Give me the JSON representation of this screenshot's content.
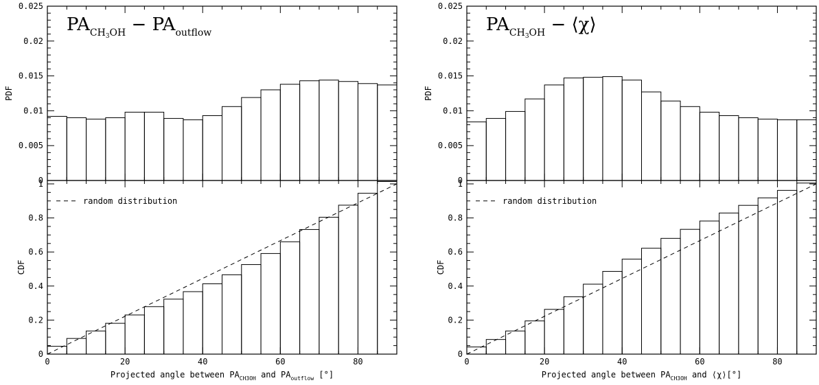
{
  "chart_data": [
    {
      "type": "bar",
      "panel": "left",
      "title": {
        "main": "PA",
        "sub1": "CH",
        "sub1b": "3",
        "sub1c": "OH",
        "op": "−",
        "rhs": "PA",
        "rhs_sub": "outflow"
      },
      "xlabel": {
        "pre": "Projected angle between PA",
        "sub1": "CH",
        "sub1b": "3",
        "sub1c": "OH",
        "mid": " and PA",
        "sub2": "outflow",
        "post": " [°]"
      },
      "pdf": {
        "ylabel": "PDF",
        "ylim": [
          0,
          0.025
        ],
        "yticks": [
          "0",
          "0.005",
          "0.01",
          "0.015",
          "0.02",
          "0.025"
        ],
        "bin_edges": [
          0,
          5,
          10,
          15,
          20,
          25,
          30,
          35,
          40,
          45,
          50,
          55,
          60,
          65,
          70,
          75,
          80,
          85,
          90
        ],
        "values": [
          0.0092,
          0.009,
          0.0088,
          0.009,
          0.0098,
          0.0098,
          0.0089,
          0.0087,
          0.0093,
          0.0106,
          0.0119,
          0.013,
          0.0138,
          0.0143,
          0.0144,
          0.0142,
          0.0139,
          0.0137
        ]
      },
      "cdf": {
        "ylabel": "CDF",
        "ylim": [
          0,
          1.02
        ],
        "yticks": [
          "0",
          "0.2",
          "0.4",
          "0.6",
          "0.8",
          "1"
        ],
        "values": [
          0.046,
          0.092,
          0.136,
          0.181,
          0.23,
          0.279,
          0.323,
          0.367,
          0.413,
          0.466,
          0.526,
          0.591,
          0.66,
          0.732,
          0.804,
          0.875,
          0.945,
          1.014
        ],
        "reference_line": {
          "label": "random distribution",
          "x": [
            0,
            90
          ],
          "y": [
            0,
            1
          ]
        }
      },
      "xticks": [
        "0",
        "20",
        "40",
        "60",
        "80"
      ],
      "xlim": [
        0,
        90
      ]
    },
    {
      "type": "bar",
      "panel": "right",
      "title": {
        "main": "PA",
        "sub1": "CH",
        "sub1b": "3",
        "sub1c": "OH",
        "op": "−",
        "rhs": "⟨χ⟩"
      },
      "xlabel": {
        "pre": "Projected angle between PA",
        "sub1": "CH",
        "sub1b": "3",
        "sub1c": "OH",
        "mid": " and ⟨χ⟩[°]"
      },
      "pdf": {
        "ylabel": "PDF",
        "ylim": [
          0,
          0.025
        ],
        "yticks": [
          "0",
          "0.005",
          "0.01",
          "0.015",
          "0.02",
          "0.025"
        ],
        "bin_edges": [
          0,
          5,
          10,
          15,
          20,
          25,
          30,
          35,
          40,
          45,
          50,
          55,
          60,
          65,
          70,
          75,
          80,
          85,
          90
        ],
        "values": [
          0.0084,
          0.0089,
          0.0099,
          0.0117,
          0.0137,
          0.0147,
          0.0148,
          0.0149,
          0.0144,
          0.0127,
          0.0114,
          0.0106,
          0.0098,
          0.0093,
          0.009,
          0.0088,
          0.0087,
          0.0087
        ]
      },
      "cdf": {
        "ylabel": "CDF",
        "ylim": [
          0,
          1.02
        ],
        "yticks": [
          "0",
          "0.2",
          "0.4",
          "0.6",
          "0.8",
          "1"
        ],
        "values": [
          0.042,
          0.086,
          0.136,
          0.195,
          0.263,
          0.337,
          0.411,
          0.486,
          0.558,
          0.622,
          0.68,
          0.733,
          0.782,
          0.829,
          0.874,
          0.918,
          0.962,
          1.005
        ],
        "reference_line": {
          "label": "random distribution",
          "x": [
            0,
            90
          ],
          "y": [
            0,
            1
          ]
        }
      },
      "xticks": [
        "0",
        "20",
        "40",
        "60",
        "80"
      ],
      "xlim": [
        0,
        90
      ]
    }
  ]
}
